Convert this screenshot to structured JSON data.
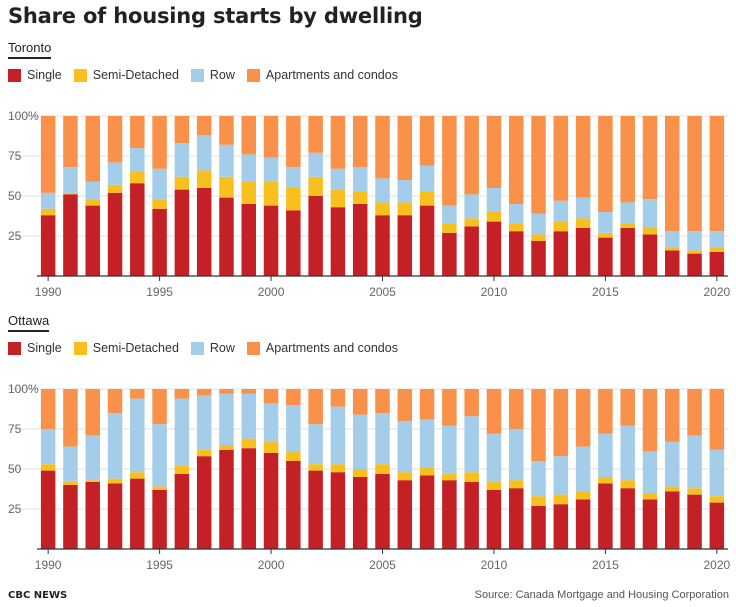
{
  "title": "Share of housing starts by dwelling",
  "legend": [
    {
      "label": "Single",
      "color": "#c42126"
    },
    {
      "label": "Semi-Detached",
      "color": "#f7c01e"
    },
    {
      "label": "Row",
      "color": "#a4cde9"
    },
    {
      "label": "Apartments and condos",
      "color": "#f9914a"
    }
  ],
  "footer": {
    "brand": "CBC NEWS",
    "source": "Source: Canada Mortgage and Housing Corporation"
  },
  "chart_data": [
    {
      "type": "bar",
      "stacked": true,
      "title": "Toronto",
      "categories": [
        1990,
        1991,
        1992,
        1993,
        1994,
        1995,
        1996,
        1997,
        1998,
        1999,
        2000,
        2001,
        2002,
        2003,
        2004,
        2005,
        2006,
        2007,
        2008,
        2009,
        2010,
        2011,
        2012,
        2013,
        2014,
        2015,
        2016,
        2017,
        2018,
        2019,
        2020
      ],
      "x_ticks": [
        "1990",
        "1995",
        "2000",
        "2005",
        "2010",
        "2015",
        "2020"
      ],
      "y_ticks": [
        "25",
        "50",
        "75",
        "100%"
      ],
      "ylim": [
        0,
        100
      ],
      "series": [
        {
          "name": "Single",
          "values": [
            38,
            51,
            44,
            52,
            58,
            42,
            54,
            55,
            49,
            45,
            44,
            41,
            50,
            43,
            45,
            38,
            38,
            44,
            27,
            31,
            34,
            28,
            22,
            28,
            30,
            24,
            30,
            26,
            16,
            14,
            15
          ]
        },
        {
          "name": "Semi-Detached",
          "values": [
            4,
            1,
            4,
            5,
            7,
            6,
            8,
            11,
            13,
            14,
            15,
            14,
            12,
            11,
            8,
            8,
            8,
            9,
            6,
            5,
            6,
            5,
            4,
            6,
            6,
            3,
            3,
            4,
            2,
            2,
            3
          ]
        },
        {
          "name": "Row",
          "values": [
            10,
            16,
            11,
            14,
            15,
            19,
            21,
            22,
            20,
            17,
            15,
            13,
            15,
            13,
            15,
            15,
            14,
            16,
            11,
            15,
            15,
            12,
            13,
            13,
            13,
            13,
            13,
            18,
            10,
            12,
            10
          ]
        },
        {
          "name": "Apartments and condos",
          "values": [
            48,
            32,
            41,
            29,
            20,
            33,
            17,
            12,
            18,
            24,
            26,
            32,
            23,
            33,
            32,
            39,
            40,
            31,
            56,
            49,
            45,
            55,
            61,
            53,
            51,
            60,
            54,
            52,
            72,
            72,
            72
          ]
        }
      ]
    },
    {
      "type": "bar",
      "stacked": true,
      "title": "Ottawa",
      "categories": [
        1990,
        1991,
        1992,
        1993,
        1994,
        1995,
        1996,
        1997,
        1998,
        1999,
        2000,
        2001,
        2002,
        2003,
        2004,
        2005,
        2006,
        2007,
        2008,
        2009,
        2010,
        2011,
        2012,
        2013,
        2014,
        2015,
        2016,
        2017,
        2018,
        2019,
        2020
      ],
      "x_ticks": [
        "1990",
        "1995",
        "2000",
        "2005",
        "2010",
        "2015",
        "2020"
      ],
      "y_ticks": [
        "25",
        "50",
        "75",
        "100%"
      ],
      "ylim": [
        0,
        100
      ],
      "series": [
        {
          "name": "Single",
          "values": [
            49,
            40,
            42,
            41,
            44,
            37,
            47,
            58,
            62,
            63,
            60,
            55,
            49,
            48,
            45,
            47,
            43,
            46,
            43,
            42,
            37,
            38,
            27,
            28,
            31,
            41,
            38,
            31,
            36,
            34,
            29
          ]
        },
        {
          "name": "Semi-Detached",
          "values": [
            4,
            2,
            1,
            3,
            4,
            2,
            5,
            4,
            3,
            6,
            7,
            6,
            4,
            5,
            5,
            6,
            5,
            5,
            4,
            6,
            5,
            5,
            6,
            6,
            5,
            4,
            5,
            4,
            3,
            4,
            4
          ]
        },
        {
          "name": "Row",
          "values": [
            22,
            22,
            28,
            41,
            46,
            39,
            42,
            34,
            32,
            28,
            24,
            29,
            25,
            36,
            34,
            32,
            32,
            30,
            30,
            35,
            30,
            32,
            22,
            24,
            28,
            27,
            34,
            26,
            28,
            33,
            29
          ]
        },
        {
          "name": "Apartments and condos",
          "values": [
            25,
            36,
            29,
            15,
            6,
            22,
            6,
            4,
            3,
            3,
            9,
            10,
            22,
            11,
            16,
            15,
            20,
            19,
            23,
            17,
            28,
            25,
            45,
            42,
            36,
            28,
            23,
            39,
            33,
            29,
            38
          ]
        }
      ]
    }
  ]
}
